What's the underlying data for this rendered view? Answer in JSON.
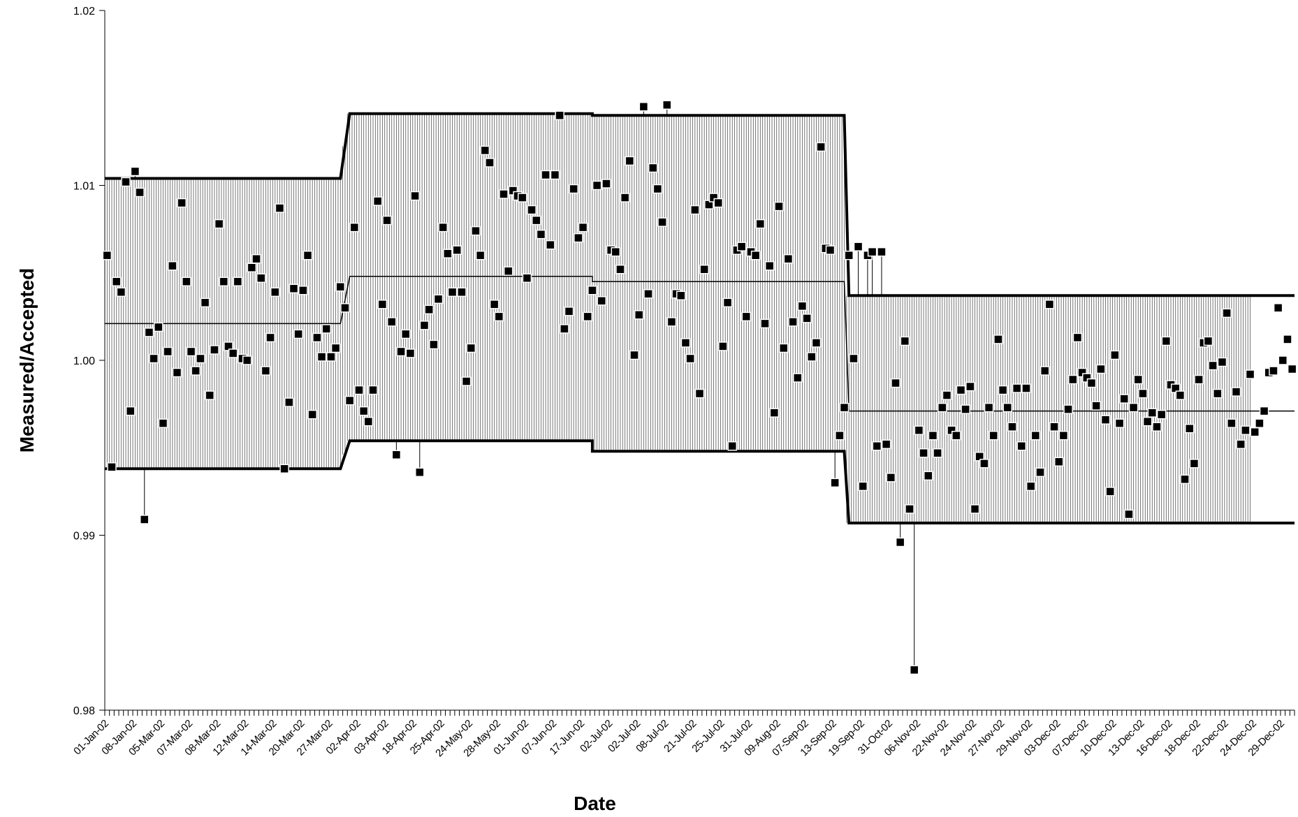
{
  "chart_data": {
    "type": "scatter",
    "title": "",
    "xlabel": "Date",
    "ylabel": "Measured/Accepted",
    "ylim": [
      0.98,
      1.02
    ],
    "yticks": [
      "0.98",
      "0.99",
      "1.00",
      "1.01",
      "1.02"
    ],
    "grid": false,
    "legend": "none",
    "x_tick_labels": [
      "01-Jan-02",
      "08-Jan-02",
      "05-Mar-02",
      "07-Mar-02",
      "08-Mar-02",
      "12-Mar-02",
      "14-Mar-02",
      "20-Mar-02",
      "27-Mar-02",
      "02-Apr-02",
      "03-Apr-02",
      "18-Apr-02",
      "25-Apr-02",
      "24-May-02",
      "28-May-02",
      "01-Jun-02",
      "07-Jun-02",
      "17-Jun-02",
      "02-Jul-02",
      "02-Jul-02",
      "08-Jul-02",
      "21-Jul-02",
      "25-Jul-02",
      "31-Jul-02",
      "09-Aug-02",
      "07-Sep-02",
      "13-Sep-02",
      "19-Sep-02",
      "31-Oct-02",
      "06-Nov-02",
      "22-Nov-02",
      "24-Nov-02",
      "27-Nov-02",
      "29-Nov-02",
      "03-Dec-02",
      "07-Dec-02",
      "10-Dec-02",
      "13-Dec-02",
      "16-Dec-02",
      "18-Dec-02",
      "22-Dec-02",
      "24-Dec-02",
      "29-Dec-02"
    ],
    "n_points": 246,
    "periods": [
      {
        "start_index": 0,
        "end_index": 50,
        "upper": 1.0104,
        "mean": 1.0021,
        "lower": 0.9938
      },
      {
        "start_index": 52,
        "end_index": 104,
        "upper": 1.0141,
        "mean": 1.0048,
        "lower": 0.9954
      },
      {
        "start_index": 104,
        "end_index": 158,
        "upper": 1.014,
        "mean": 1.0045,
        "lower": 0.9948
      },
      {
        "start_index": 159,
        "end_index": 245,
        "upper": 1.0037,
        "mean": 0.9971,
        "lower": 0.9907
      }
    ],
    "series": [
      {
        "marker": "square",
        "values": [
          1.006,
          0.9939,
          1.0045,
          1.0039,
          1.0102,
          0.9971,
          1.0108,
          1.0096,
          0.9909,
          1.0016,
          1.0001,
          1.0019,
          0.9964,
          1.0005,
          1.0054,
          0.9993,
          1.009,
          1.0045,
          1.0005,
          0.9994,
          1.0001,
          1.0033,
          0.998,
          1.0006,
          1.0078,
          1.0045,
          1.0008,
          1.0004,
          1.0045,
          1.0001,
          1.0,
          1.0053,
          1.0058,
          1.0047,
          0.9994,
          1.0013,
          1.0039,
          1.0087,
          0.9938,
          0.9976,
          1.0041,
          1.0015,
          1.004,
          1.006,
          0.9969,
          1.0013,
          1.0002,
          1.0018,
          1.0002,
          1.0007,
          1.0042,
          1.003,
          0.9977,
          1.0076,
          0.9983,
          0.9971,
          0.9965,
          0.9983,
          1.0091,
          1.0032,
          1.008,
          1.0022,
          0.9946,
          1.0005,
          1.0015,
          1.0004,
          1.0094,
          0.9936,
          1.002,
          1.0029,
          1.0009,
          1.0035,
          1.0076,
          1.0061,
          1.0039,
          1.0063,
          1.0039,
          0.9988,
          1.0007,
          1.0074,
          1.006,
          1.012,
          1.0113,
          1.0032,
          1.0025,
          1.0095,
          1.0051,
          1.0097,
          1.0094,
          1.0093,
          1.0047,
          1.0086,
          1.008,
          1.0072,
          1.0106,
          1.0066,
          1.0106,
          1.014,
          1.0018,
          1.0028,
          1.0098,
          1.007,
          1.0076,
          1.0025,
          1.004,
          1.01,
          1.0034,
          1.0101,
          1.0063,
          1.0062,
          1.0052,
          1.0093,
          1.0114,
          1.0003,
          1.0026,
          1.0145,
          1.0038,
          1.011,
          1.0098,
          1.0079,
          1.0146,
          1.0022,
          1.0038,
          1.0037,
          1.001,
          1.0001,
          1.0086,
          0.9981,
          1.0052,
          1.0089,
          1.0093,
          1.009,
          1.0008,
          1.0033,
          0.9951,
          1.0063,
          1.0065,
          1.0025,
          1.0062,
          1.006,
          1.0078,
          1.0021,
          1.0054,
          0.997,
          1.0088,
          1.0007,
          1.0058,
          1.0022,
          0.999,
          1.0031,
          1.0024,
          1.0002,
          1.001,
          1.0122,
          1.0064,
          1.0063,
          0.993,
          0.9957,
          0.9973,
          1.006,
          1.0001,
          1.0065,
          0.9928,
          1.006,
          1.0062,
          0.9951,
          1.0062,
          0.9952,
          0.9933,
          0.9987,
          0.9896,
          1.0011,
          0.9915,
          0.9823,
          0.996,
          0.9947,
          0.9934,
          0.9957,
          0.9947,
          0.9973,
          0.998,
          0.996,
          0.9957,
          0.9983,
          0.9972,
          0.9985,
          0.9915,
          0.9945,
          0.9941,
          0.9973,
          0.9957,
          1.0012,
          0.9983,
          0.9973,
          0.9962,
          0.9984,
          0.9951,
          0.9984,
          0.9928,
          0.9957,
          0.9936,
          0.9994,
          1.0032,
          0.9962,
          0.9942,
          0.9957,
          0.9972,
          0.9989,
          1.0013,
          0.9993,
          0.999,
          0.9987,
          0.9974,
          0.9995,
          0.9966,
          0.9925,
          1.0003,
          0.9964,
          0.9978,
          0.9912,
          0.9973,
          0.9989,
          0.9981,
          0.9965,
          0.997,
          0.9962,
          0.9969,
          1.0011,
          0.9986,
          0.9984,
          0.998,
          0.9932,
          0.9961,
          0.9941,
          0.9989,
          1.001,
          1.0011,
          0.9997,
          0.9981,
          0.9999,
          1.0027,
          0.9964,
          0.9982,
          0.9952,
          0.996,
          0.9992,
          0.9959,
          0.9964,
          0.9971,
          0.9993,
          0.9994,
          1.003,
          1.0,
          1.0012,
          0.9995
        ]
      }
    ]
  }
}
